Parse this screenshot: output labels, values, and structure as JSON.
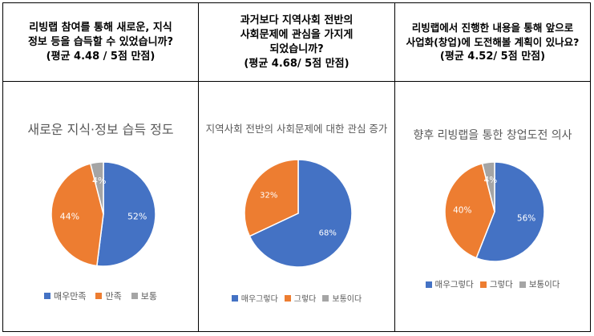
{
  "questions": [
    {
      "lines": [
        "리빙랩 참여를 통해 새로운, 지식",
        "정보 등을 습득할 수 있었습니까?",
        "(평균  4.48  /  5점  만점)"
      ]
    },
    {
      "lines": [
        "과거보다 지역사회 전반의",
        "사회문제에 관심을 가지게",
        "되었습니까?",
        "(평균  4.68/  5점  만점)"
      ]
    },
    {
      "lines": [
        "리빙랩에서 진행한 내용을 통해 앞으로",
        "사업화(창업)에 도전해볼 계획이 있나요?",
        "(평균  4.52/  5점  만점)"
      ]
    }
  ],
  "colors": {
    "blue": "#4472C4",
    "orange": "#ED7D31",
    "gray": "#A5A5A5"
  },
  "chart_data": [
    {
      "type": "pie",
      "title": "새로운 지식·정보 습득 정도",
      "categories": [
        "매우만족",
        "만족",
        "보통"
      ],
      "values": [
        52,
        44,
        4
      ],
      "labels": [
        "52%",
        "44%",
        "4%"
      ]
    },
    {
      "type": "pie",
      "title": "지역사회 전반의 사회문제에 대한 관심 증가",
      "categories": [
        "매우그렇다",
        "그렇다",
        "보통이다"
      ],
      "values": [
        68,
        32,
        0
      ],
      "labels": [
        "68%",
        "32%",
        ""
      ]
    },
    {
      "type": "pie",
      "title": "향후 리빙랩을 통한 창업도전 의사",
      "categories": [
        "매우그렇다",
        "그렇다",
        "보통이다"
      ],
      "values": [
        56,
        40,
        4
      ],
      "labels": [
        "56%",
        "40%",
        "4%"
      ]
    }
  ]
}
